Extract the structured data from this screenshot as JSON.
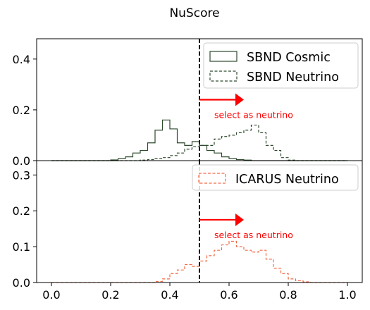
{
  "figure": {
    "title": "NuScore"
  },
  "chart_data": [
    {
      "type": "histogram",
      "panel": "top",
      "xlim": [
        -0.05,
        1.05
      ],
      "ylim": [
        0,
        0.48
      ],
      "yticks": [
        0.0,
        0.2,
        0.4
      ],
      "ytick_labels": [
        "0.0",
        "0.2",
        "0.4"
      ],
      "bin_edges": [
        0.0,
        0.025,
        0.05,
        0.075,
        0.1,
        0.125,
        0.15,
        0.175,
        0.2,
        0.225,
        0.25,
        0.275,
        0.3,
        0.325,
        0.35,
        0.375,
        0.4,
        0.425,
        0.45,
        0.475,
        0.5,
        0.525,
        0.55,
        0.575,
        0.6,
        0.625,
        0.65,
        0.675,
        0.7,
        0.725,
        0.75,
        0.775,
        0.8,
        0.825,
        0.85,
        0.875,
        0.9,
        0.925,
        0.95,
        0.975,
        1.0
      ],
      "series": [
        {
          "name": "SBND Cosmic",
          "style": "solid",
          "color": "#2d4a2d",
          "values": [
            0,
            0,
            0,
            0,
            0,
            0,
            0,
            0,
            0.003,
            0.008,
            0.015,
            0.03,
            0.04,
            0.07,
            0.12,
            0.16,
            0.125,
            0.07,
            0.06,
            0.075,
            0.06,
            0.04,
            0.03,
            0.015,
            0.008,
            0.004,
            0.002,
            0,
            0,
            0,
            0,
            0,
            0,
            0,
            0,
            0,
            0,
            0,
            0,
            0
          ]
        },
        {
          "name": "SBND Neutrino",
          "style": "dashed",
          "color": "#2d4a2d",
          "values": [
            0,
            0,
            0,
            0,
            0,
            0,
            0,
            0,
            0,
            0,
            0,
            0,
            0.002,
            0.004,
            0.008,
            0.012,
            0.02,
            0.03,
            0.045,
            0.055,
            0.06,
            0.06,
            0.085,
            0.095,
            0.1,
            0.11,
            0.12,
            0.14,
            0.11,
            0.06,
            0.04,
            0.012,
            0.002,
            0,
            0,
            0,
            0,
            0,
            0,
            0
          ]
        }
      ],
      "legend_position": "top-right",
      "cut_line": {
        "x": 0.5,
        "style": "dashed",
        "color": "#000000"
      },
      "arrow": {
        "from": 0.5,
        "to": 0.65,
        "y": 0.24,
        "color": "#ff0000"
      },
      "annotation": {
        "text": "select as neutrino",
        "color": "#ff0000"
      }
    },
    {
      "type": "histogram",
      "panel": "bottom",
      "xlim": [
        -0.05,
        1.05
      ],
      "ylim": [
        0,
        0.34
      ],
      "xticks": [
        0.0,
        0.2,
        0.4,
        0.6,
        0.8,
        1.0
      ],
      "xtick_labels": [
        "0.0",
        "0.2",
        "0.4",
        "0.6",
        "0.8",
        "1.0"
      ],
      "yticks": [
        0.0,
        0.1,
        0.2,
        0.3
      ],
      "ytick_labels": [
        "0.0",
        "0.1",
        "0.2",
        "0.3"
      ],
      "bin_edges": [
        0.0,
        0.025,
        0.05,
        0.075,
        0.1,
        0.125,
        0.15,
        0.175,
        0.2,
        0.225,
        0.25,
        0.275,
        0.3,
        0.325,
        0.35,
        0.375,
        0.4,
        0.425,
        0.45,
        0.475,
        0.5,
        0.525,
        0.55,
        0.575,
        0.6,
        0.625,
        0.65,
        0.675,
        0.7,
        0.725,
        0.75,
        0.775,
        0.8,
        0.825,
        0.85,
        0.875,
        0.9,
        0.925,
        0.95,
        0.975,
        1.0
      ],
      "series": [
        {
          "name": "ICARUS Neutrino",
          "style": "dashed",
          "color": "#f26a45",
          "values": [
            0,
            0,
            0,
            0,
            0,
            0,
            0,
            0,
            0,
            0,
            0,
            0,
            0,
            0,
            0.003,
            0.01,
            0.025,
            0.035,
            0.05,
            0.045,
            0.06,
            0.075,
            0.09,
            0.105,
            0.115,
            0.1,
            0.09,
            0.085,
            0.09,
            0.065,
            0.04,
            0.025,
            0.01,
            0.005,
            0.002,
            0,
            0,
            0,
            0,
            0
          ]
        }
      ],
      "legend_position": "top-right",
      "cut_line": {
        "x": 0.5,
        "style": "dashed",
        "color": "#000000"
      },
      "arrow": {
        "from": 0.5,
        "to": 0.65,
        "y": 0.175,
        "color": "#ff0000"
      },
      "annotation": {
        "text": "select as neutrino",
        "color": "#ff0000"
      }
    }
  ]
}
